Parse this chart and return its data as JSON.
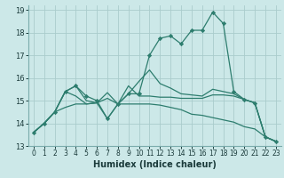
{
  "xlabel": "Humidex (Indice chaleur)",
  "bg_color": "#cce8e8",
  "grid_color": "#aacccc",
  "line_color": "#2d7d6e",
  "xlim": [
    -0.5,
    23.5
  ],
  "ylim": [
    13.0,
    19.2
  ],
  "yticks": [
    13,
    14,
    15,
    16,
    17,
    18,
    19
  ],
  "xticks": [
    0,
    1,
    2,
    3,
    4,
    5,
    6,
    7,
    8,
    9,
    10,
    11,
    12,
    13,
    14,
    15,
    16,
    17,
    18,
    19,
    20,
    21,
    22,
    23
  ],
  "lines": [
    {
      "y": [
        13.6,
        14.0,
        14.5,
        15.4,
        15.65,
        15.2,
        15.0,
        14.2,
        14.85,
        15.3,
        15.3,
        17.0,
        17.75,
        17.85,
        17.5,
        18.1,
        18.1,
        18.9,
        18.4,
        15.4,
        15.05,
        14.9,
        13.4,
        13.2
      ],
      "linestyle": "-",
      "marker": true
    },
    {
      "y": [
        13.6,
        14.0,
        14.5,
        15.4,
        15.65,
        15.0,
        14.9,
        15.35,
        14.85,
        15.65,
        15.2,
        15.2,
        15.15,
        15.15,
        15.1,
        15.1,
        15.1,
        15.25,
        15.25,
        15.2,
        15.05,
        14.9,
        13.4,
        13.2
      ],
      "linestyle": "-",
      "marker": false
    },
    {
      "y": [
        13.6,
        14.0,
        14.5,
        15.4,
        15.2,
        14.85,
        14.9,
        14.2,
        14.85,
        15.3,
        15.85,
        16.35,
        15.75,
        15.55,
        15.3,
        15.25,
        15.2,
        15.5,
        15.4,
        15.3,
        15.05,
        14.9,
        13.4,
        13.2
      ],
      "linestyle": "-",
      "marker": false
    },
    {
      "y": [
        13.6,
        14.0,
        14.5,
        14.7,
        14.85,
        14.85,
        14.9,
        15.1,
        14.85,
        14.85,
        14.85,
        14.85,
        14.8,
        14.7,
        14.6,
        14.4,
        14.35,
        14.25,
        14.15,
        14.05,
        13.85,
        13.75,
        13.4,
        13.2
      ],
      "linestyle": "-",
      "marker": false
    }
  ]
}
